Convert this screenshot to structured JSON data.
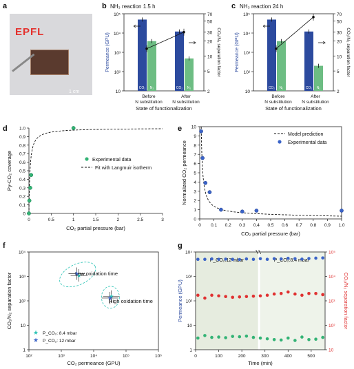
{
  "panels": {
    "a": {
      "letter": "a",
      "logo": "EPFL",
      "scalebar": "1 cm"
    },
    "b": {
      "letter": "b",
      "subtitle": "NH₃ reaction 1.5 h"
    },
    "c": {
      "letter": "c",
      "subtitle": "NH₃ reaction 24 h"
    },
    "d": {
      "letter": "d"
    },
    "e": {
      "letter": "e"
    },
    "f": {
      "letter": "f"
    },
    "g": {
      "letter": "g"
    }
  },
  "colors": {
    "blue": "#2c4a9e",
    "green": "#6dbd83",
    "teal": "#2ec4b6",
    "red": "#e03131",
    "gray": "#f0f0f0",
    "point_blue": "#3a63c8",
    "point_green": "#33b375"
  },
  "chart_data": [
    {
      "panel": "b",
      "type": "bar",
      "categories": [
        "Before\nN substitution",
        "After\nN substitution"
      ],
      "series": [
        {
          "name": "CO₂",
          "values": [
            50000,
            12000
          ]
        },
        {
          "name": "N₂",
          "values": [
            3800,
            480
          ]
        }
      ],
      "line": {
        "values": [
          14,
          30
        ],
        "axis": "right"
      },
      "bar_labels": [
        "CO₂",
        "N₂"
      ],
      "xlabel": "State of functionalization",
      "ylabel": "Permeance (GPU)",
      "ylabel_right": "CO₂/N₂ separation factor",
      "ylim": [
        10,
        100000
      ],
      "yscale": "log",
      "yticks": [
        "10",
        "10²",
        "10³",
        "10⁴",
        "10⁵"
      ],
      "ylim_right": [
        2,
        70
      ],
      "yscale_right": "log",
      "yticks_right": [
        "2",
        "5",
        "10",
        "20",
        "30",
        "50",
        "70"
      ]
    },
    {
      "panel": "c",
      "type": "bar",
      "categories": [
        "Before\nN substitution",
        "After\nN substitution"
      ],
      "series": [
        {
          "name": "CO₂",
          "values": [
            50000,
            12000
          ]
        },
        {
          "name": "N₂",
          "values": [
            3800,
            200
          ]
        }
      ],
      "line": {
        "values": [
          14,
          60
        ],
        "axis": "right"
      },
      "bar_labels": [
        "CO₂",
        "N₂"
      ],
      "xlabel": "State of functionalization",
      "ylabel": "Permeance (GPU)",
      "ylabel_right": "CO₂/N₂ separation factor",
      "ylim": [
        10,
        100000
      ],
      "yscale": "log",
      "yticks": [
        "10",
        "10²",
        "10³",
        "10⁴",
        "10⁵"
      ],
      "ylim_right": [
        2,
        70
      ],
      "yscale_right": "log",
      "yticks_right": [
        "2",
        "5",
        "10",
        "20",
        "30",
        "50",
        "70"
      ]
    },
    {
      "panel": "d",
      "type": "scatter",
      "series": [
        {
          "name": "Experimental data",
          "x": [
            0,
            0.01,
            0.03,
            0.05,
            1.0
          ],
          "y": [
            0,
            0.15,
            0.3,
            0.45,
            1.0
          ]
        },
        {
          "name": "Fit with Langmuir isotherm",
          "kind": "line",
          "model": "langmuir",
          "K": 40
        }
      ],
      "xlabel": "CO₂ partial pressure (bar)",
      "ylabel": "Py-CO₂ coverage",
      "xlim": [
        0,
        3.0
      ],
      "ylim": [
        0,
        1.0
      ],
      "xticks": [
        0,
        0.5,
        1.0,
        1.5,
        2.0,
        2.5,
        3.0
      ],
      "yticks": [
        0,
        0.1,
        0.2,
        0.3,
        0.4,
        0.5,
        0.6,
        0.7,
        0.8,
        0.9,
        1.0
      ],
      "legend": "center-right"
    },
    {
      "panel": "e",
      "type": "scatter",
      "series": [
        {
          "name": "Model prediction",
          "kind": "line",
          "model": "reciprocal"
        },
        {
          "name": "Experimental data",
          "x": [
            0.01,
            0.02,
            0.04,
            0.07,
            0.15,
            0.3,
            0.4,
            1.0
          ],
          "y": [
            9.5,
            6.6,
            3.9,
            2.9,
            1.0,
            0.8,
            0.9,
            0.9
          ]
        }
      ],
      "xlabel": "CO₂ partial pressure (bar)",
      "ylabel": "Normalized CO₂ permeance",
      "xlim": [
        0,
        1.0
      ],
      "ylim": [
        0,
        10
      ],
      "xticks": [
        0,
        0.1,
        0.2,
        0.3,
        0.4,
        0.5,
        0.6,
        0.7,
        0.8,
        0.9,
        1.0
      ],
      "yticks": [
        0,
        1,
        2,
        3,
        4,
        5,
        6,
        7,
        8,
        9,
        10
      ],
      "legend": "top-right"
    },
    {
      "panel": "f",
      "type": "scatter",
      "series": [
        {
          "name": "P_CO₂: 8.4 mbar",
          "x": [
            3500,
            35000
          ],
          "y": [
            1100,
            150
          ]
        },
        {
          "name": "P_CO₂: 12 mbar",
          "x": [
            3000,
            32000
          ],
          "y": [
            1300,
            130
          ]
        }
      ],
      "annotations": [
        "Low oxidation time",
        "High oxidation time"
      ],
      "xlabel": "CO₂ permeance (GPU)",
      "ylabel": "CO₂/N₂ separation factor",
      "xlim": [
        100,
        1000000
      ],
      "ylim": [
        1,
        10000
      ],
      "xscale": "log",
      "yscale": "log",
      "xticks": [
        "10²",
        "10³",
        "10⁴",
        "10⁵",
        "10⁶"
      ],
      "yticks": [
        "1",
        "10",
        "10²",
        "10³",
        "10⁴"
      ],
      "legend": "bottom-left"
    },
    {
      "panel": "g",
      "type": "scatter",
      "regions": [
        "P_CO₂:12 mbar",
        "P_CO₂:8.4 mbar"
      ],
      "series": [
        {
          "name": "CO₂",
          "color": "blue",
          "x": [
            10,
            40,
            70,
            100,
            130,
            160,
            190,
            220,
            250,
            280,
            310,
            340,
            370,
            400,
            430,
            460,
            490,
            520,
            550
          ],
          "y": [
            5000,
            5000,
            5200,
            5000,
            5100,
            5000,
            4900,
            5200,
            5000,
            5300,
            5000,
            5300,
            5200,
            5500,
            5300,
            5100,
            5400,
            5600,
            5700
          ]
        },
        {
          "name": "N₂",
          "color": "green",
          "x": [
            10,
            40,
            70,
            100,
            130,
            160,
            190,
            220,
            250,
            280,
            310,
            340,
            370,
            400,
            430,
            460,
            490,
            520,
            550
          ],
          "y": [
            3,
            3.8,
            3.2,
            3.3,
            3.1,
            3.5,
            3.4,
            3.6,
            3.2,
            3.0,
            2.8,
            2.6,
            2.5,
            3.0,
            2.4,
            3.3,
            2.6,
            2.7,
            3.2
          ]
        },
        {
          "name": "Separation factor",
          "color": "red",
          "x": [
            10,
            40,
            70,
            100,
            130,
            160,
            190,
            220,
            250,
            280,
            310,
            340,
            370,
            400,
            430,
            460,
            490,
            520,
            550
          ],
          "y": [
            1700,
            1300,
            1700,
            1600,
            1500,
            1400,
            1450,
            1500,
            1550,
            1600,
            1700,
            1900,
            2000,
            2300,
            1900,
            1700,
            2000,
            2000,
            1800
          ]
        }
      ],
      "xlabel": "Time (min)",
      "ylabel": "Permeance (GPU)",
      "ylabel_right": "CO₂/N₂ separation factor",
      "xlim": [
        0,
        560
      ],
      "ylim": [
        1,
        10000
      ],
      "yscale": "log",
      "xticks": [
        0,
        100,
        200,
        300,
        400,
        500
      ],
      "yticks": [
        "1",
        "10",
        "10²",
        "10³",
        "10⁴"
      ],
      "yticks_right": [
        "10",
        "10²",
        "10³",
        "10⁴",
        "10⁵"
      ]
    }
  ]
}
